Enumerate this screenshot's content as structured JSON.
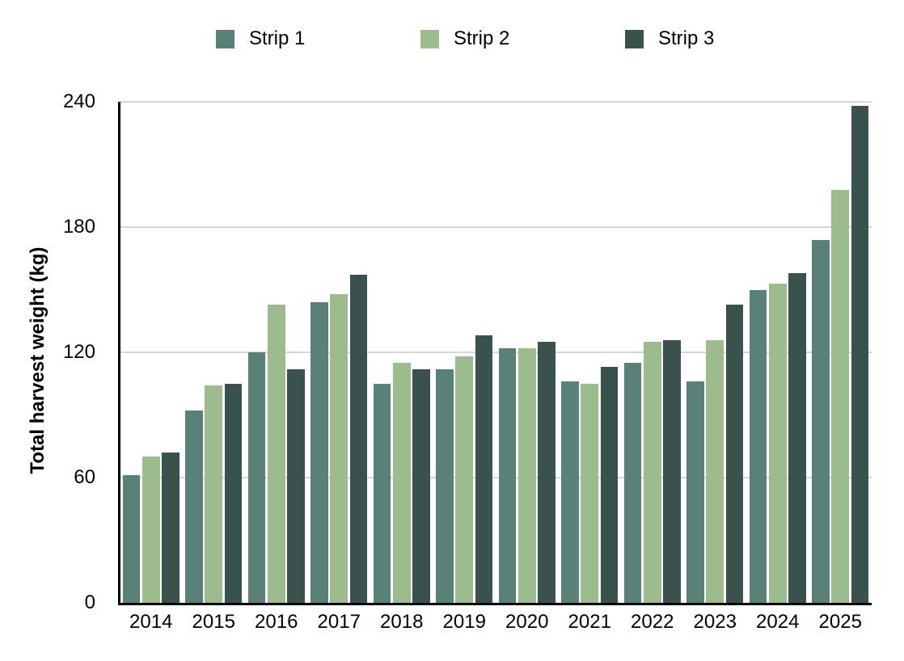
{
  "chart_data": {
    "type": "bar",
    "title": "",
    "ylabel": "Total harvest weight (kg)",
    "xlabel": "",
    "categories": [
      "2014",
      "2015",
      "2016",
      "2017",
      "2018",
      "2019",
      "2020",
      "2021",
      "2022",
      "2023",
      "2024",
      "2025"
    ],
    "series": [
      {
        "name": "Strip 1",
        "color": "#5A8178",
        "values": [
          61,
          92,
          120,
          144,
          105,
          112,
          122,
          106,
          115,
          106,
          150,
          174
        ]
      },
      {
        "name": "Strip 2",
        "color": "#9DBC8E",
        "values": [
          70,
          104,
          143,
          148,
          115,
          118,
          122,
          105,
          125,
          126,
          153,
          198
        ]
      },
      {
        "name": "Strip 3",
        "color": "#3A524E",
        "values": [
          72,
          105,
          112,
          157,
          112,
          128,
          125,
          113,
          126,
          143,
          158,
          238
        ]
      }
    ],
    "ylim": [
      0,
      240
    ],
    "yticks": [
      0,
      60,
      120,
      180,
      240
    ],
    "grid": "horizontal",
    "legend_position": "top"
  },
  "style": {
    "background": "#FFFFFF",
    "axis_color": "#000000",
    "gridline_color": "#D6D6D6",
    "text_color": "#000000"
  }
}
